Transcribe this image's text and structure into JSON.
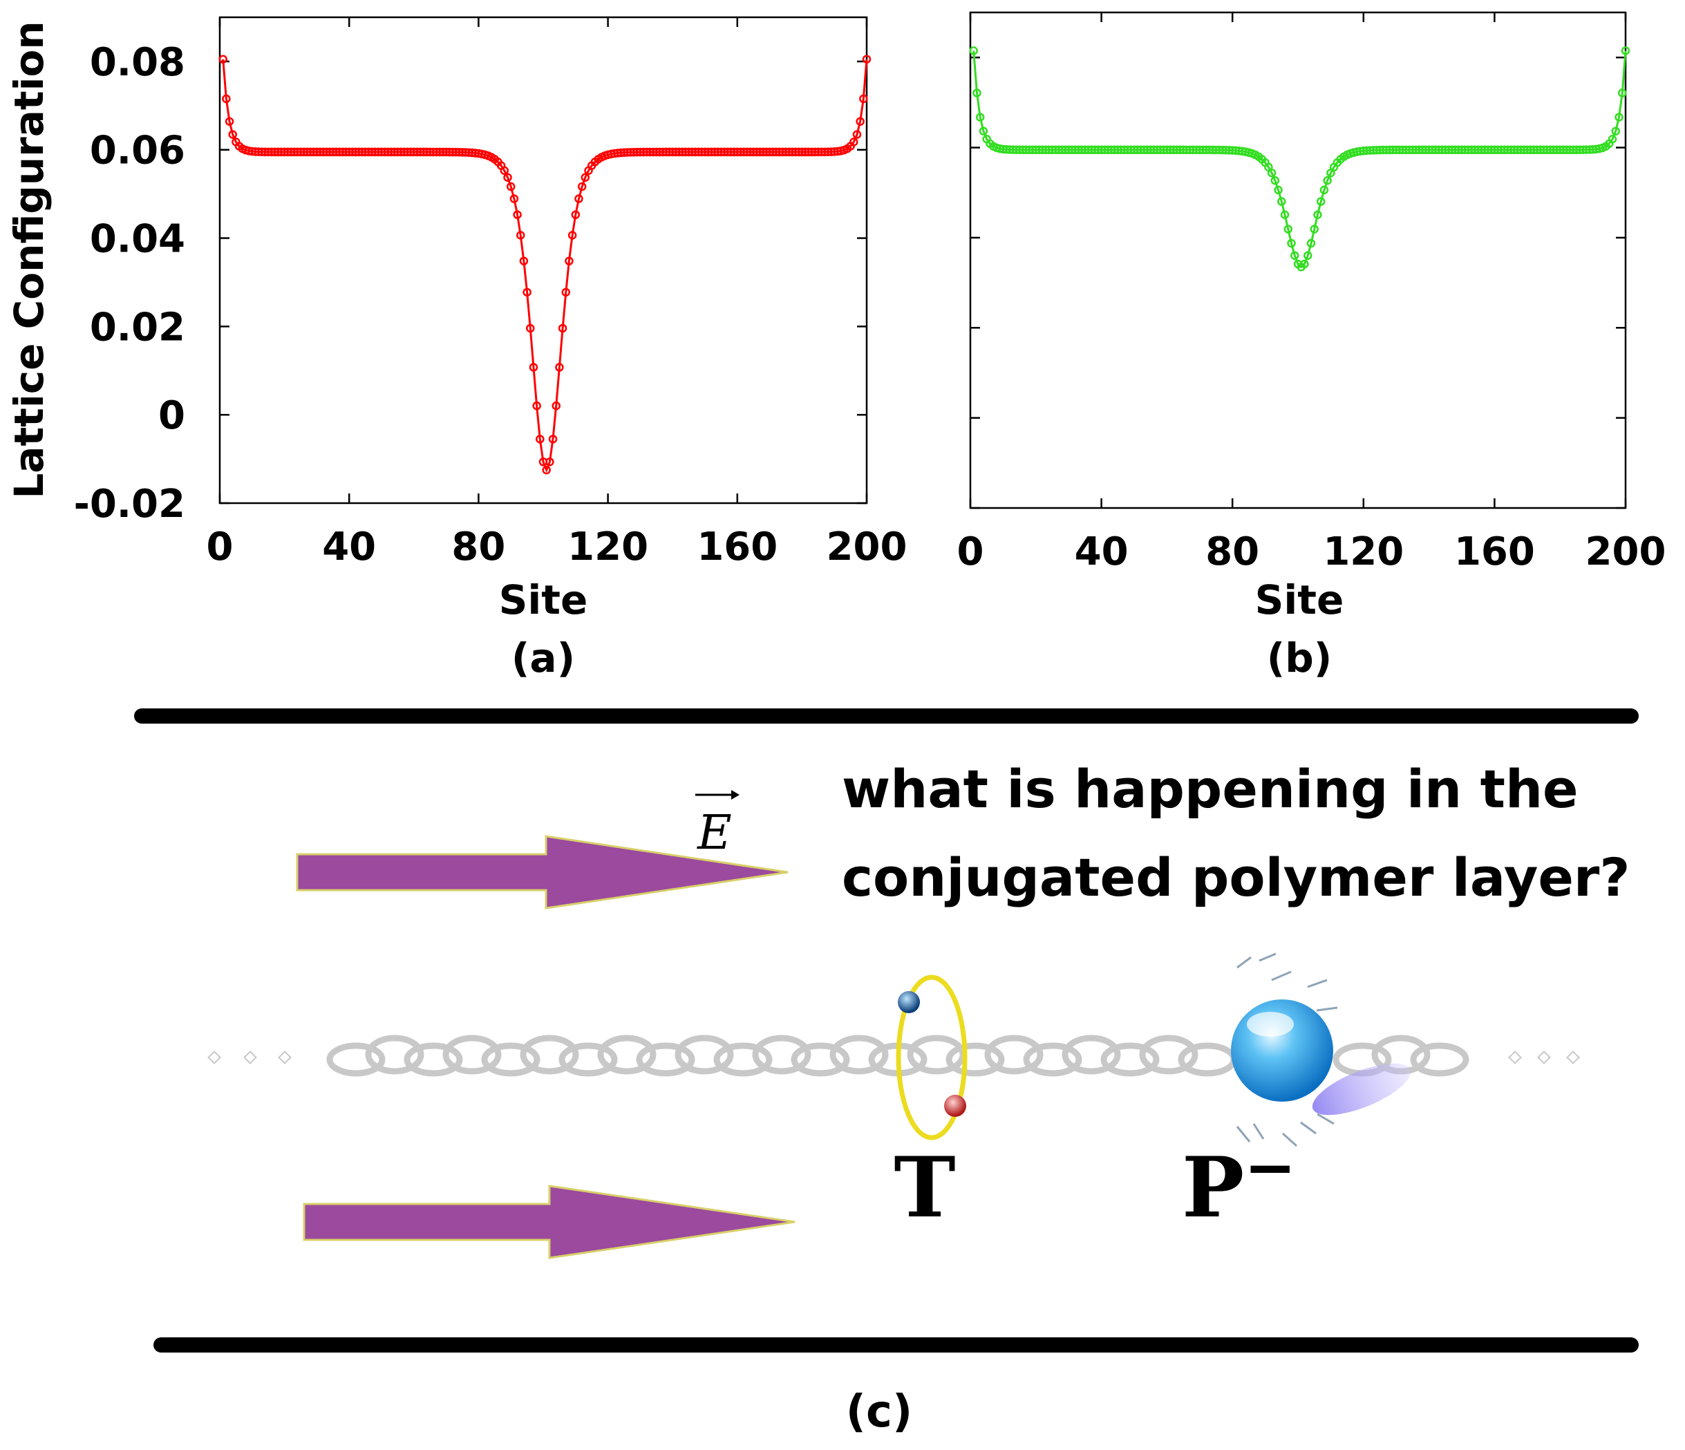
{
  "chart_data": [
    {
      "type": "line",
      "panel_label": "(a)",
      "xlabel": "Site",
      "ylabel": "Lattice Configuration",
      "xlim": [
        0,
        200
      ],
      "ylim": [
        -0.02,
        0.09
      ],
      "xticks": [
        0,
        40,
        80,
        120,
        160,
        200
      ],
      "yticks": [
        -0.02,
        0,
        0.02,
        0.04,
        0.06,
        0.08
      ],
      "ytick_labels": [
        "-0.02",
        "0",
        "0.02",
        "0.04",
        "0.06",
        "0.08"
      ],
      "xtick_labels": [
        "0",
        "40",
        "80",
        "120",
        "160",
        "200"
      ],
      "color": "#ff0000",
      "marker": "circle",
      "edge_value": 0.0805,
      "plateau": 0.0595,
      "center": 101,
      "minimum": -0.0125
    },
    {
      "type": "line",
      "panel_label": "(b)",
      "xlabel": "Site",
      "ylabel": "",
      "xlim": [
        0,
        200
      ],
      "ylim": [
        -0.02,
        0.09
      ],
      "xticks": [
        0,
        40,
        80,
        120,
        160,
        200
      ],
      "yticks": [
        -0.02,
        0,
        0.02,
        0.04,
        0.06,
        0.08
      ],
      "xtick_labels": [
        "0",
        "40",
        "80",
        "120",
        "160",
        "200"
      ],
      "color": "#33dd22",
      "marker": "circle",
      "edge_value": 0.0815,
      "plateau": 0.0595,
      "center": 101,
      "minimum": 0.0335
    }
  ],
  "diagram": {
    "question_line1": "what is happening in the",
    "question_line2": "conjugated polymer layer?",
    "field_label": "E",
    "triplet_label": "T",
    "polaron_label": "P",
    "polaron_charge": "−",
    "panel_label": "(c)",
    "arrow_color": "#9b4a9e",
    "chain_color": "#c8c8c8",
    "orbit_color": "#ecdc20"
  }
}
